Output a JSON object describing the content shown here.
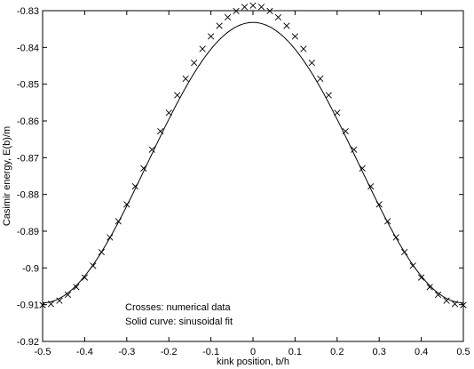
{
  "chart_data": {
    "type": "line",
    "title": "",
    "xlabel": "kink position, b/h",
    "ylabel": "Casimir energy, E(b)/m",
    "xlim": [
      -0.5,
      0.5
    ],
    "ylim": [
      -0.92,
      -0.83
    ],
    "xticks": [
      -0.5,
      -0.4,
      -0.3,
      -0.2,
      -0.1,
      0,
      0.1,
      0.2,
      0.3,
      0.4,
      0.5
    ],
    "xtick_labels": [
      "-0.5",
      "-0.4",
      "-0.3",
      "-0.2",
      "-0.1",
      "0",
      "0.1",
      "0.2",
      "0.3",
      "0.4",
      "0.5"
    ],
    "yticks": [
      -0.92,
      -0.91,
      -0.9,
      -0.89,
      -0.88,
      -0.87,
      -0.86,
      -0.85,
      -0.84,
      -0.83
    ],
    "ytick_labels": [
      "-0.92",
      "-0.91",
      "-0.9",
      "-0.89",
      "-0.88",
      "-0.87",
      "-0.86",
      "-0.85",
      "-0.84",
      "-0.83"
    ],
    "grid": false,
    "annotations": [
      "Crosses: numerical data",
      "Solid curve: sinusoidal fit"
    ],
    "series": [
      {
        "marker": "x",
        "x": [
          -0.5,
          -0.48,
          -0.46,
          -0.44,
          -0.42,
          -0.4,
          -0.38,
          -0.36,
          -0.34,
          -0.32,
          -0.3,
          -0.28,
          -0.26,
          -0.24,
          -0.22,
          -0.2,
          -0.18,
          -0.16,
          -0.14,
          -0.12,
          -0.1,
          -0.08,
          -0.06,
          -0.04,
          -0.02,
          0,
          0.02,
          0.04,
          0.06,
          0.08,
          0.1,
          0.12,
          0.14,
          0.16,
          0.18,
          0.2,
          0.22,
          0.24,
          0.26,
          0.28,
          0.3,
          0.32,
          0.34,
          0.36,
          0.38,
          0.4,
          0.42,
          0.44,
          0.46,
          0.48,
          0.5
        ],
        "y": [
          -0.9101,
          -0.9098,
          -0.9089,
          -0.9073,
          -0.9052,
          -0.9026,
          -0.8994,
          -0.8957,
          -0.8917,
          -0.8873,
          -0.8827,
          -0.8778,
          -0.8729,
          -0.8678,
          -0.8628,
          -0.8578,
          -0.853,
          -0.8485,
          -0.8442,
          -0.8404,
          -0.837,
          -0.8341,
          -0.8318,
          -0.8301,
          -0.829,
          -0.8286,
          -0.829,
          -0.8301,
          -0.8318,
          -0.8341,
          -0.837,
          -0.8404,
          -0.8442,
          -0.8485,
          -0.853,
          -0.8578,
          -0.8628,
          -0.8678,
          -0.8729,
          -0.8778,
          -0.8827,
          -0.8873,
          -0.8917,
          -0.8957,
          -0.8994,
          -0.9026,
          -0.9052,
          -0.9073,
          -0.9089,
          -0.9098,
          -0.9101
        ]
      },
      {
        "style": "solid",
        "fit": {
          "form": "offset + amplitude*cos(2*pi*x)",
          "offset": -0.87135,
          "amplitude": 0.03815
        }
      }
    ]
  }
}
